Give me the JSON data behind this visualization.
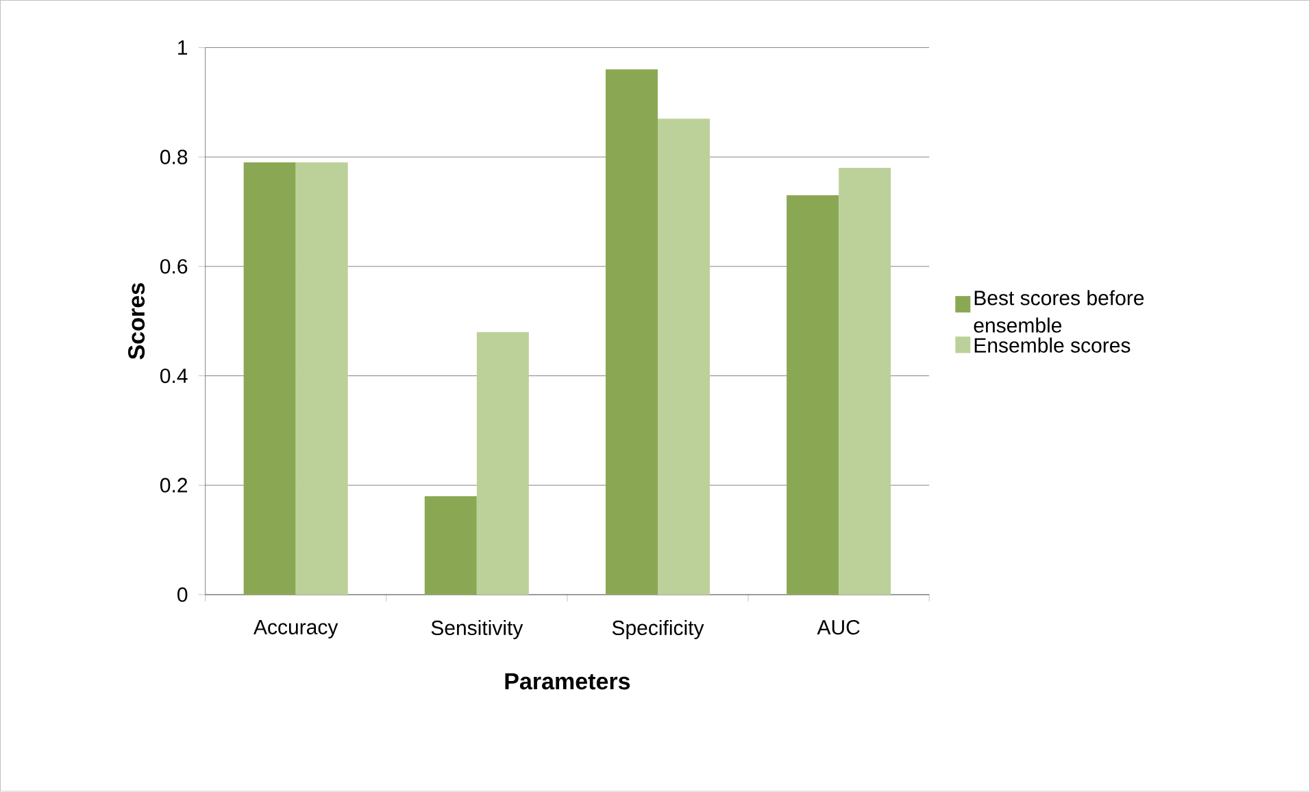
{
  "chart_data": {
    "type": "bar",
    "xlabel": "Parameters",
    "ylabel": "Scores",
    "categories": [
      "Accuracy",
      "Sensitivity",
      "Specificity",
      "AUC"
    ],
    "series": [
      {
        "name": "Best scores before ensemble",
        "color": "#8aa853",
        "values": [
          0.79,
          0.18,
          0.96,
          0.73
        ]
      },
      {
        "name": "Ensemble scores",
        "color": "#bcd19a",
        "values": [
          0.79,
          0.48,
          0.87,
          0.78
        ]
      }
    ],
    "ylim": [
      0,
      1
    ],
    "yticks": [
      0,
      0.2,
      0.4,
      0.6,
      0.8,
      1
    ],
    "grid": "y",
    "legend": "right"
  }
}
